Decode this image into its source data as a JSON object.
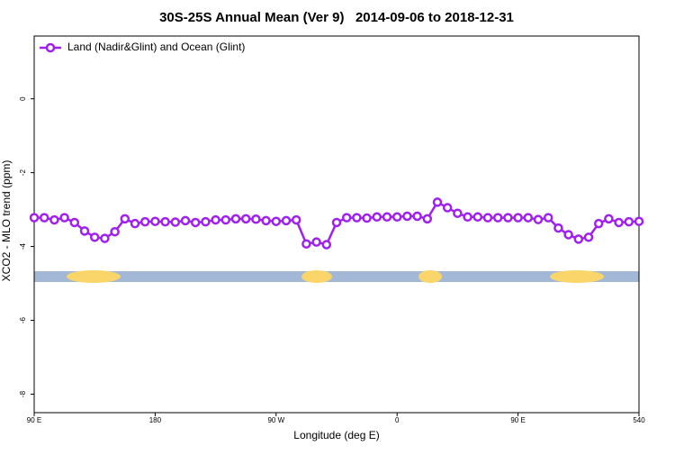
{
  "chart_data": {
    "type": "line",
    "title": "30S-25S Annual Mean (Ver 9)   2014-09-06 to 2018-12-31",
    "x_label": "Longitude (deg E)",
    "y_label": "XCO2 - MLO trend (ppm)",
    "x": [
      90,
      97.5,
      105,
      112.5,
      120,
      127.5,
      135,
      142.5,
      150,
      157.5,
      165,
      172.5,
      180,
      187.5,
      195,
      202.5,
      210,
      217.5,
      225,
      232.5,
      240,
      247.5,
      255,
      262.5,
      270,
      277.5,
      285,
      292.5,
      300,
      307.5,
      315,
      322.5,
      330,
      337.5,
      345,
      352.5,
      360,
      367.5,
      375,
      382.5,
      390,
      397.5,
      405,
      412.5,
      420,
      427.5,
      435,
      442.5,
      450,
      457.5,
      465,
      472.5,
      480,
      487.5,
      495,
      502.5,
      510,
      517.5,
      525,
      532.5,
      540
    ],
    "series": [
      {
        "name": "Land (Nadir&Glint) and Ocean (Glint)",
        "color": "#a020f0",
        "values": [
          -3.22,
          -3.22,
          -3.28,
          -3.22,
          -3.35,
          -3.58,
          -3.75,
          -3.78,
          -3.6,
          -3.25,
          -3.38,
          -3.33,
          -3.32,
          -3.33,
          -3.34,
          -3.3,
          -3.35,
          -3.33,
          -3.28,
          -3.28,
          -3.25,
          -3.25,
          -3.26,
          -3.3,
          -3.32,
          -3.3,
          -3.28,
          -3.93,
          -3.88,
          -3.95,
          -3.35,
          -3.22,
          -3.22,
          -3.23,
          -3.2,
          -3.2,
          -3.2,
          -3.18,
          -3.18,
          -3.25,
          -2.8,
          -2.95,
          -3.1,
          -3.2,
          -3.2,
          -3.22,
          -3.22,
          -3.22,
          -3.22,
          -3.22,
          -3.27,
          -3.22,
          -3.5,
          -3.68,
          -3.8,
          -3.75,
          -3.38,
          -3.25,
          -3.35,
          -3.33,
          -3.32
        ]
      }
    ],
    "xlim": [
      90,
      540
    ],
    "xticks": [
      {
        "value": 90,
        "label": "90 E"
      },
      180,
      {
        "value": 270,
        "label": "90 W"
      },
      {
        "value": 360,
        "label": "0"
      },
      {
        "value": 450,
        "label": "90 E"
      },
      540
    ],
    "ylim": [
      -8.5,
      1.7
    ],
    "yticks": [
      0,
      -2,
      -4,
      -6,
      -8
    ],
    "legend": "top-left"
  }
}
